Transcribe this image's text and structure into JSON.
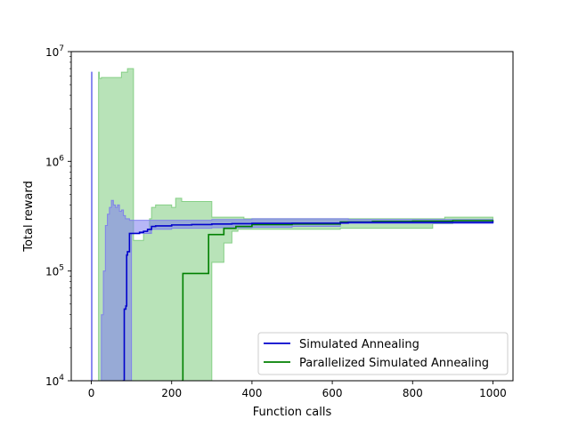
{
  "chart_data": {
    "type": "line",
    "title": "",
    "xlabel": "Function calls",
    "ylabel": "Total reward",
    "xlim": [
      -50,
      1050
    ],
    "ylim": [
      10000,
      10000000
    ],
    "yscale": "log",
    "grid": false,
    "legend_position": "lower-right",
    "x_ticks": [
      0,
      200,
      400,
      600,
      800,
      1000
    ],
    "x_tick_labels": [
      "0",
      "200",
      "400",
      "600",
      "800",
      "1000"
    ],
    "y_ticks": [
      10000,
      100000,
      1000000,
      10000000
    ],
    "y_tick_labels": [
      {
        "base": "10",
        "exp": "4"
      },
      {
        "base": "10",
        "exp": "5"
      },
      {
        "base": "10",
        "exp": "6"
      },
      {
        "base": "10",
        "exp": "7"
      }
    ],
    "series": [
      {
        "name": "Simulated Annealing",
        "color": "#0000cc",
        "band_color": "#7b7bee",
        "x": [
          78,
          82,
          86,
          88,
          90,
          95,
          100,
          110,
          120,
          130,
          140,
          150,
          160,
          200,
          250,
          300,
          350,
          400,
          500,
          620,
          640,
          1000
        ],
        "y": [
          10000,
          45000,
          48000,
          140000,
          150000,
          220000,
          220000,
          220000,
          225000,
          230000,
          240000,
          255000,
          258000,
          263000,
          265000,
          268000,
          270000,
          272000,
          273000,
          275000,
          278000,
          285000
        ],
        "band_x": [
          0,
          2,
          4,
          20,
          25,
          30,
          35,
          40,
          45,
          50,
          55,
          60,
          65,
          70,
          75,
          80,
          85,
          90,
          95,
          100,
          110,
          120,
          130,
          150,
          200,
          250,
          300,
          400,
          500,
          620,
          640,
          1000
        ],
        "band_lower": [
          10000,
          10000,
          10000,
          10000,
          10000,
          10000,
          10000,
          10000,
          10000,
          10000,
          10000,
          10000,
          10000,
          10000,
          10000,
          10000,
          10000,
          10000,
          10000,
          220000,
          220000,
          220000,
          220000,
          240000,
          245000,
          245000,
          248000,
          250000,
          255000,
          270000,
          272000,
          280000
        ],
        "band_upper": [
          6500000,
          10000,
          10000,
          10000,
          40000,
          100000,
          260000,
          330000,
          380000,
          440000,
          400000,
          380000,
          400000,
          350000,
          360000,
          320000,
          300000,
          300000,
          290000,
          290000,
          290000,
          290000,
          290000,
          290000,
          290000,
          290000,
          295000,
          300000,
          300000,
          300000,
          295000,
          295000
        ]
      },
      {
        "name": "Parallelized Simulated Annealing",
        "color": "#008000",
        "band_color": "#7dcc7d",
        "x": [
          225,
          228,
          290,
          292,
          330,
          360,
          400,
          500,
          620,
          700,
          800,
          900,
          1000
        ],
        "y": [
          10000,
          95000,
          95000,
          215000,
          245000,
          255000,
          265000,
          268000,
          280000,
          283000,
          285000,
          288000,
          292000
        ],
        "band_x": [
          15,
          18,
          20,
          25,
          50,
          75,
          90,
          100,
          105,
          115,
          130,
          145,
          150,
          160,
          200,
          210,
          225,
          270,
          290,
          300,
          330,
          350,
          365,
          380,
          400,
          500,
          620,
          850,
          880,
          900,
          1000
        ],
        "band_lower": [
          10000,
          10000,
          10000,
          10000,
          10000,
          10000,
          10000,
          10000,
          10000,
          10000,
          10000,
          10000,
          10000,
          10000,
          10000,
          10000,
          10000,
          10000,
          10000,
          120000,
          180000,
          230000,
          240000,
          240000,
          240000,
          240000,
          245000,
          270000,
          270000,
          275000,
          285000
        ],
        "band_upper": [
          10000,
          6500000,
          5700000,
          5800000,
          5800000,
          6500000,
          7000000,
          7000000,
          190000,
          190000,
          220000,
          300000,
          380000,
          400000,
          380000,
          460000,
          430000,
          430000,
          430000,
          310000,
          310000,
          310000,
          310000,
          300000,
          300000,
          300000,
          300000,
          300000,
          310000,
          310000,
          310000
        ]
      }
    ]
  }
}
